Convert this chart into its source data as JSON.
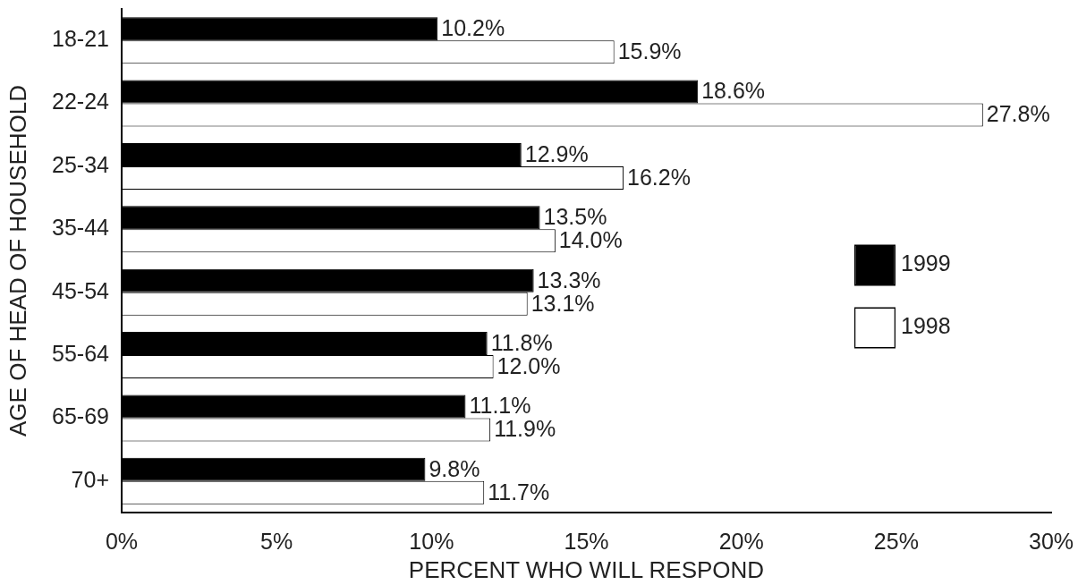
{
  "chart_data": {
    "type": "bar",
    "orientation": "horizontal",
    "categories": [
      "18-21",
      "22-24",
      "25-34",
      "35-44",
      "45-54",
      "55-64",
      "65-69",
      "70+"
    ],
    "series": [
      {
        "name": "1999",
        "color": "#000000",
        "values": [
          10.2,
          18.6,
          12.9,
          13.5,
          13.3,
          11.8,
          11.1,
          9.8
        ],
        "value_labels": [
          "10.2%",
          "18.6%",
          "12.9%",
          "13.5%",
          "13.3%",
          "11.8%",
          "11.1%",
          "9.8%"
        ]
      },
      {
        "name": "1998",
        "color": "#ffffff",
        "values": [
          15.9,
          27.8,
          16.2,
          14.0,
          13.1,
          12.0,
          11.9,
          11.7
        ],
        "value_labels": [
          "15.9%",
          "27.8%",
          "16.2%",
          "14.0%",
          "13.1%",
          "12.0%",
          "11.9%",
          "11.7%"
        ]
      }
    ],
    "xlim": [
      0,
      30
    ],
    "xticks": [
      {
        "value": 0,
        "label": "0%"
      },
      {
        "value": 5,
        "label": "5%"
      },
      {
        "value": 10,
        "label": "10%"
      },
      {
        "value": 15,
        "label": "15%"
      },
      {
        "value": 20,
        "label": "20%"
      },
      {
        "value": 25,
        "label": "25%"
      },
      {
        "value": 30,
        "label": "30%"
      }
    ],
    "xlabel": "PERCENT WHO WILL RESPOND",
    "ylabel": "AGE OF HEAD OF HOUSEHOLD",
    "legend": "right"
  }
}
